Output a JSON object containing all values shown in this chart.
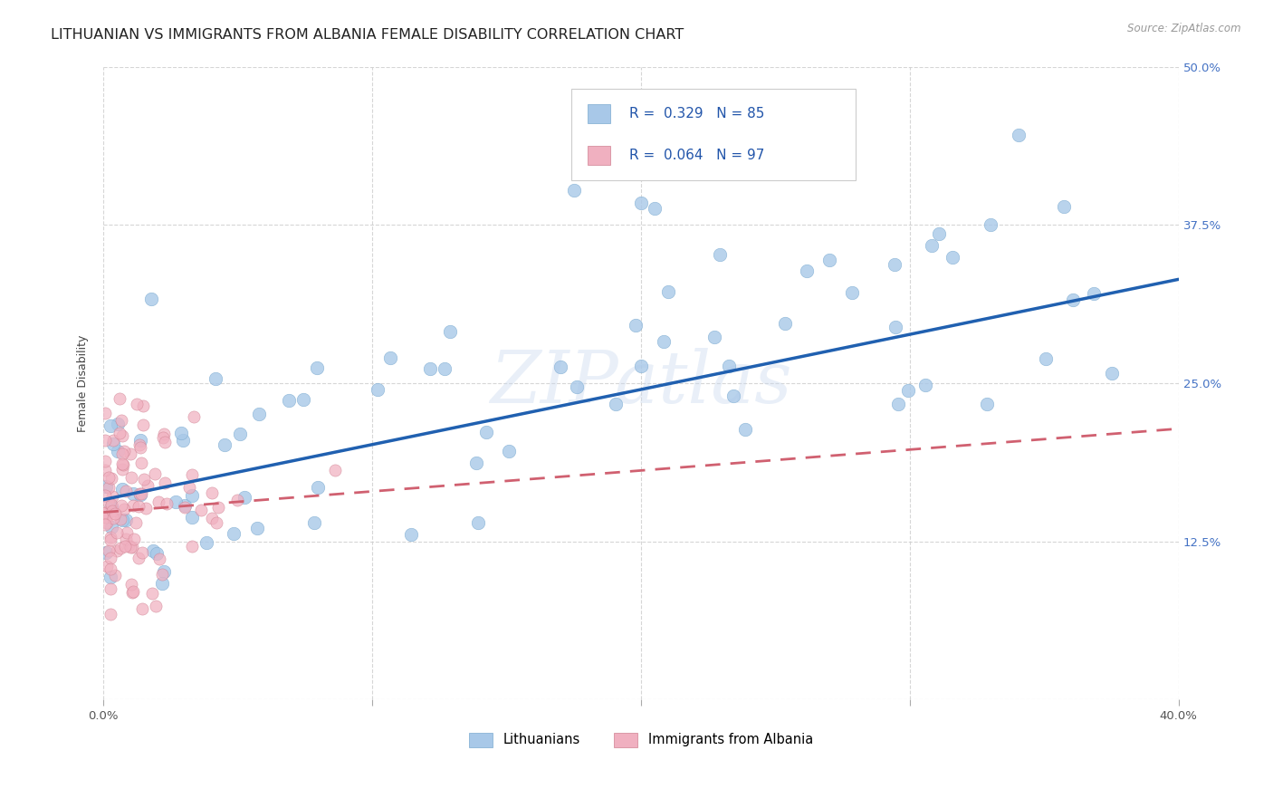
{
  "title": "LITHUANIAN VS IMMIGRANTS FROM ALBANIA FEMALE DISABILITY CORRELATION CHART",
  "source": "Source: ZipAtlas.com",
  "ylabel": "Female Disability",
  "xlim": [
    0.0,
    0.4
  ],
  "ylim": [
    0.0,
    0.5
  ],
  "xticks": [
    0.0,
    0.1,
    0.2,
    0.3,
    0.4
  ],
  "yticks": [
    0.0,
    0.125,
    0.25,
    0.375,
    0.5
  ],
  "xtick_labels": [
    "0.0%",
    "",
    "",
    "",
    "40.0%"
  ],
  "ytick_labels_right": [
    "",
    "12.5%",
    "25.0%",
    "37.5%",
    "50.0%"
  ],
  "legend_entries": [
    {
      "R": 0.329,
      "N": 85
    },
    {
      "R": 0.064,
      "N": 97
    }
  ],
  "legend_bottom": [
    "Lithuanians",
    "Immigrants from Albania"
  ],
  "blue_scatter_color": "#a8c8e8",
  "pink_scatter_color": "#f0b0c0",
  "blue_line_color": "#2060b0",
  "pink_line_color": "#d06070",
  "blue_line_intercept": 0.158,
  "blue_line_slope": 0.435,
  "pink_line_intercept": 0.148,
  "pink_line_slope": 0.165,
  "watermark": "ZIPatlas",
  "background_color": "#ffffff",
  "grid_color": "#cccccc",
  "title_fontsize": 11.5,
  "axis_label_fontsize": 9,
  "tick_fontsize": 9.5
}
